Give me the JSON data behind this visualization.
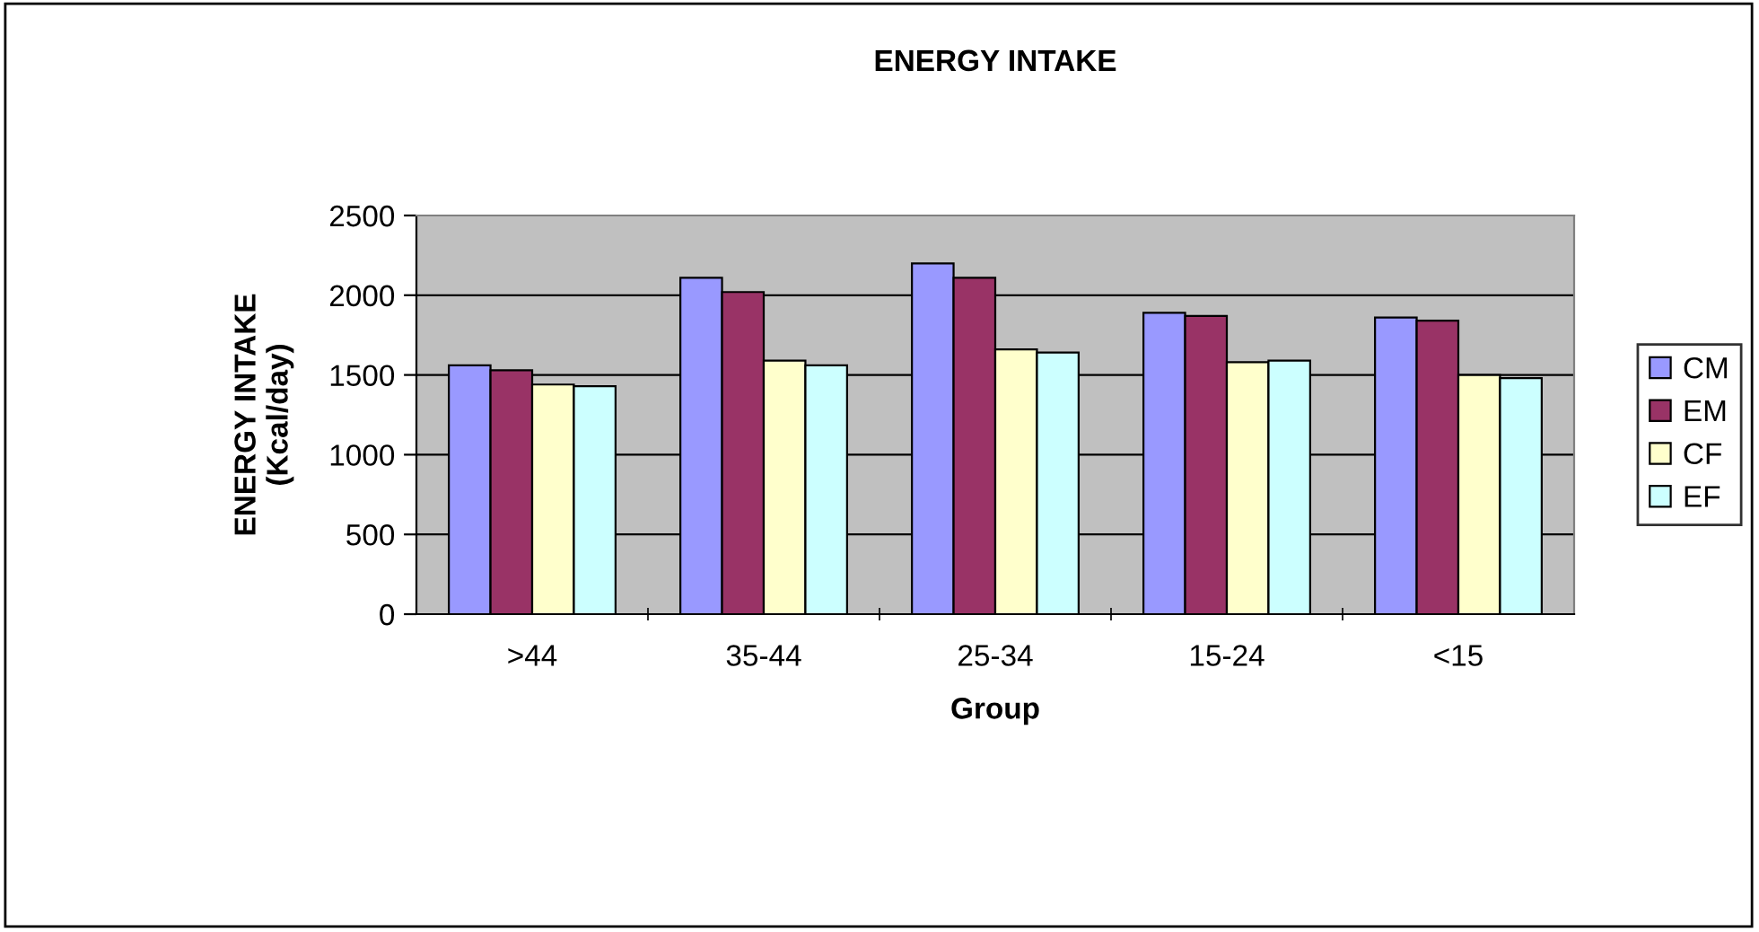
{
  "chart_data": {
    "type": "bar",
    "title": "ENERGY INTAKE",
    "xlabel": "Group",
    "ylabel": "ENERGY INTAKE\n(Kcal/day)",
    "categories": [
      ">44",
      "35-44",
      "25-34",
      "15-24",
      "<15"
    ],
    "series": [
      {
        "name": "CM",
        "color": "#9999ff",
        "values": [
          1560,
          2110,
          2200,
          1890,
          1860
        ]
      },
      {
        "name": "EM",
        "color": "#993366",
        "values": [
          1530,
          2020,
          2110,
          1870,
          1840
        ]
      },
      {
        "name": "CF",
        "color": "#ffffcc",
        "values": [
          1440,
          1590,
          1660,
          1580,
          1500
        ]
      },
      {
        "name": "EF",
        "color": "#ccffff",
        "values": [
          1430,
          1560,
          1640,
          1590,
          1480
        ]
      }
    ],
    "ylim": [
      0,
      2500
    ],
    "yticks": [
      0,
      500,
      1000,
      1500,
      2000,
      2500
    ],
    "grid": "y",
    "legend": "right"
  }
}
